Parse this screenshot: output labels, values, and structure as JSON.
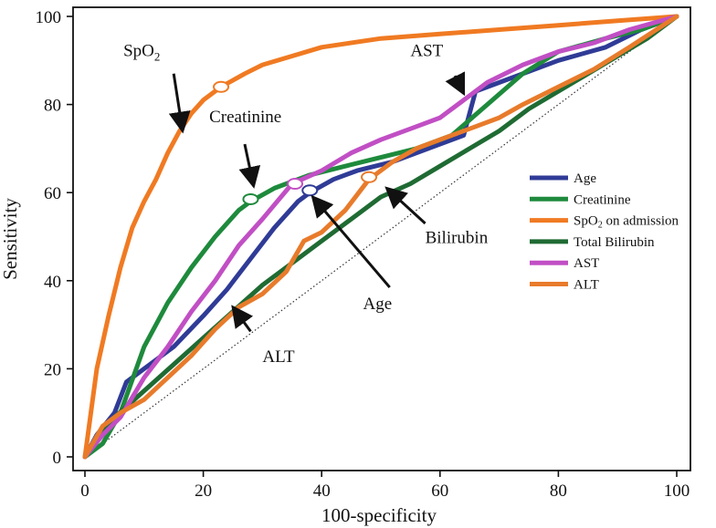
{
  "chart_data": {
    "type": "line",
    "title": "",
    "xlabel": "100-specificity",
    "ylabel": "Sensitivity",
    "xlim": [
      0,
      100
    ],
    "ylim": [
      0,
      100
    ],
    "xticks": [
      0,
      20,
      40,
      60,
      80,
      100
    ],
    "yticks": [
      0,
      20,
      40,
      60,
      80,
      100
    ],
    "grid": false,
    "legend_position": "right-middle",
    "reference_line": {
      "x": [
        0,
        100
      ],
      "y": [
        0,
        100
      ],
      "style": "dotted"
    },
    "series": [
      {
        "name": "Age",
        "color": "#2f3b96",
        "x": [
          0,
          2,
          5,
          7,
          10,
          15,
          20,
          24,
          28,
          32,
          36,
          38,
          42,
          46,
          52,
          58,
          64,
          66,
          72,
          80,
          88,
          94,
          100
        ],
        "y": [
          0,
          5,
          10,
          17,
          20,
          25,
          32,
          38,
          45,
          52,
          58,
          60,
          63,
          65,
          67,
          70,
          73,
          83,
          86,
          90,
          93,
          97,
          100
        ]
      },
      {
        "name": "Creatinine",
        "color": "#1e8a3c",
        "x": [
          0,
          3,
          6,
          10,
          14,
          18,
          22,
          26,
          28,
          32,
          38,
          44,
          50,
          56,
          62,
          68,
          74,
          80,
          88,
          94,
          100
        ],
        "y": [
          0,
          3,
          10,
          25,
          35,
          43,
          50,
          56,
          58,
          61,
          64,
          66,
          68,
          70,
          73,
          80,
          87,
          92,
          95,
          97,
          100
        ]
      },
      {
        "name": "SpO2 on admission",
        "color": "#f07a22",
        "x": [
          0,
          1,
          2,
          4,
          6,
          8,
          10,
          12,
          14,
          16,
          18,
          20,
          23,
          27,
          30,
          35,
          40,
          50,
          60,
          70,
          80,
          90,
          100
        ],
        "y": [
          0,
          10,
          20,
          32,
          43,
          52,
          58,
          63,
          69,
          74,
          78,
          81,
          84,
          87,
          89,
          91,
          93,
          95,
          96,
          97,
          98,
          99,
          100
        ]
      },
      {
        "name": "Total Bilirubin",
        "color": "#1f6b33",
        "x": [
          0,
          5,
          10,
          15,
          20,
          25,
          30,
          35,
          40,
          45,
          50,
          55,
          60,
          65,
          70,
          75,
          80,
          85,
          90,
          95,
          100
        ],
        "y": [
          0,
          9,
          15,
          21,
          27,
          33,
          39,
          44,
          49,
          54,
          59,
          62,
          66,
          70,
          74,
          79,
          83,
          87,
          91,
          95,
          100
        ]
      },
      {
        "name": "AST",
        "color": "#c14fc4",
        "x": [
          0,
          3,
          6,
          10,
          14,
          18,
          22,
          26,
          30,
          35,
          40,
          45,
          50,
          56,
          60,
          64,
          68,
          74,
          80,
          86,
          92,
          100
        ],
        "y": [
          0,
          5,
          9,
          18,
          25,
          33,
          40,
          48,
          54,
          62,
          65,
          69,
          72,
          75,
          77,
          81,
          85,
          89,
          92,
          94,
          97,
          100
        ]
      },
      {
        "name": "ALT",
        "color": "#e87b2b",
        "x": [
          0,
          3,
          6,
          10,
          14,
          18,
          22,
          26,
          30,
          34,
          37,
          40,
          44,
          48,
          52,
          56,
          60,
          66,
          70,
          74,
          80,
          86,
          92,
          100
        ],
        "y": [
          0,
          7,
          10,
          13,
          18,
          23,
          29,
          34,
          37,
          42,
          49,
          51,
          56,
          63,
          67,
          70,
          72,
          75,
          77,
          80,
          84,
          88,
          93,
          100
        ]
      }
    ],
    "markers": [
      {
        "series": "SpO2 on admission",
        "x": 23,
        "y": 84
      },
      {
        "series": "Creatinine",
        "x": 28,
        "y": 58.5
      },
      {
        "series": "AST",
        "x": 35.5,
        "y": 62
      },
      {
        "series": "Age",
        "x": 38,
        "y": 60.5
      },
      {
        "series": "ALT",
        "x": 48,
        "y": 63.5
      }
    ],
    "annotations": [
      {
        "label": "SpO",
        "subscript": "2",
        "text_x": 6.5,
        "text_y": 91,
        "arrow_from": [
          15,
          87
        ],
        "arrow_to": [
          16.5,
          74
        ]
      },
      {
        "label": "Creatinine",
        "text_x": 21,
        "text_y": 76,
        "arrow_from": [
          27,
          71
        ],
        "arrow_to": [
          28.5,
          61.5
        ]
      },
      {
        "label": "AST",
        "text_x": 55,
        "text_y": 91,
        "arrow_from": [
          62.5,
          86.5
        ],
        "arrow_to": [
          64,
          82.5
        ]
      },
      {
        "label": "Age",
        "text_x": 47,
        "text_y": 33.5,
        "arrow_from": [
          51.5,
          38.5
        ],
        "arrow_to": [
          38.5,
          59
        ]
      },
      {
        "label": "Bilirubin",
        "text_x": 57.5,
        "text_y": 48.5,
        "arrow_from": [
          57.5,
          53
        ],
        "arrow_to": [
          51,
          61
        ]
      },
      {
        "label": "ALT",
        "text_x": 30,
        "text_y": 21.5,
        "arrow_from": [
          28,
          28.5
        ],
        "arrow_to": [
          25,
          34
        ]
      }
    ]
  }
}
